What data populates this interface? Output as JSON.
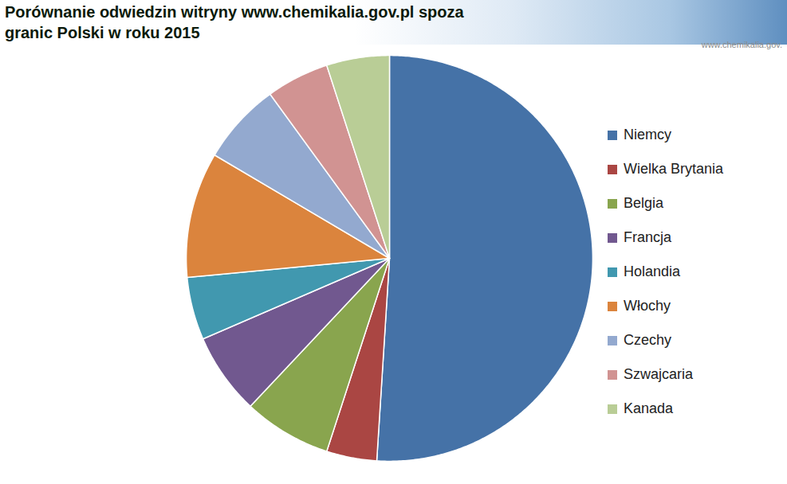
{
  "chart_data": {
    "type": "pie",
    "title": "Porównanie odwiedzin witryny www.chemikalia.gov.pl spoza granic Polski w roku 2015",
    "watermark": "www.chemikalia.gov.",
    "categories": [
      "Niemcy",
      "Wielka Brytania",
      "Belgia",
      "Francja",
      "Holandia",
      "Włochy",
      "Czechy",
      "Szwajcaria",
      "Kanada"
    ],
    "values": [
      51,
      4,
      7,
      6.5,
      5,
      10,
      6.5,
      5,
      5
    ],
    "colors": [
      "#4572a7",
      "#aa4643",
      "#89a54e",
      "#71588f",
      "#4198af",
      "#db843d",
      "#93a9cf",
      "#d19392",
      "#b9cd96"
    ],
    "legend": "right"
  }
}
